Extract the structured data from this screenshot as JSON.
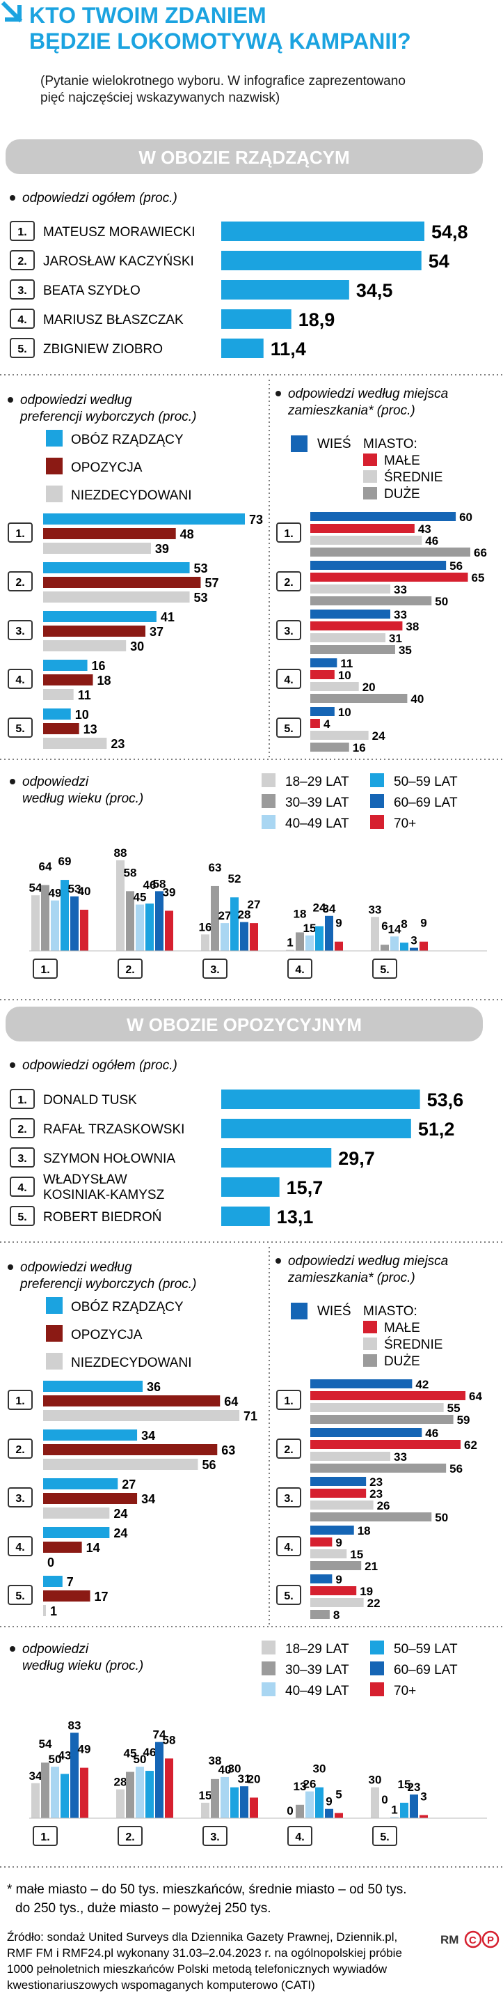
{
  "header": {
    "title_line1": "KTO TWOIM ZDANIEM",
    "title_line2": "BĘDZIE LOKOMOTYWĄ KAMPANII?",
    "subtitle_line1": "(Pytanie wielokrotnego wyboru. W infografice zaprezentowano",
    "subtitle_line2": "pięć najczęściej wskazywanych nazwisk)"
  },
  "colors": {
    "cyan": "#1ba3e0",
    "blue": "#1565b5",
    "lightblue": "#a9d6f2",
    "darkred": "#8b1a14",
    "red": "#d6202f",
    "lightgray": "#d0d0d0",
    "midgray": "#9b9b9b",
    "darkgray": "#7a7a7a",
    "band": "#c9c9c9"
  },
  "labels": {
    "overall": "odpowiedzi ogółem (proc.)",
    "pref_line1": "odpowiedzi według",
    "pref_line2": "preferencji wyborczych (proc.)",
    "place_line1_ruling": "odpowiedzi według miejsca",
    "place_line2_ruling": "zamieszkania* (proc.)",
    "place_line1_opp": "odpowiedzi według miejsca",
    "place_line2_opp": "zamieszkania* (proc.)",
    "age_line1": "odpowiedzi",
    "age_line2": "według wieku (proc.)",
    "pref_legend": [
      "OBÓZ RZĄDZĄCY",
      "OPOZYCJA",
      "NIEZDECYDOWANI"
    ],
    "place_village": "WIEŚ",
    "place_city": "MIASTO:",
    "place_legend": [
      "MAŁE",
      "ŚREDNIE",
      "DUŻE"
    ],
    "age_legend": [
      "18–29 LAT",
      "30–39 LAT",
      "40–49 LAT",
      "50–59 LAT",
      "60–69 LAT",
      "70+"
    ]
  },
  "footer": {
    "note_line1": "* małe miasto – do 50 tys. mieszkańców, średnie miasto – od 50 tys.",
    "note_line2": "do 250 tys., duże miasto – powyżej 250 tys.",
    "source_line1": "Źródło: sondaż United Surveys dla Dziennika Gazety Prawnej, Dziennik.pl,",
    "source_line2": "RMF FM i RMF24.pl wykonany 31.03–2.04.2023 r. na ogólnopolskiej próbie",
    "source_line3": "1000 pełnoletnich mieszkańców Polski metodą telefonicznych wywiadów",
    "source_line4": "kwestionariuszowych wspomaganych komputerowo (CATI)",
    "logo_text": "RM"
  },
  "chart_data": [
    {
      "section": "W OBOZIE RZĄDZĄCYM",
      "overall": {
        "type": "bar",
        "categories": [
          "MATEUSZ MORAWIECKI",
          "JAROSŁAW KACZYŃSKI",
          "BEATA SZYDŁO",
          "MARIUSZ BŁASZCZAK",
          "ZBIGNIEW ZIOBRO"
        ],
        "values": [
          "54,8",
          "54",
          "34,5",
          "18,9",
          "11,4"
        ],
        "numeric": [
          54.8,
          54,
          34.5,
          18.9,
          11.4
        ]
      },
      "by_preference": {
        "type": "bar",
        "categories": [
          "1.",
          "2.",
          "3.",
          "4.",
          "5."
        ],
        "series": [
          {
            "name": "OBÓZ RZĄDZĄCY",
            "values": [
              73,
              53,
              41,
              16,
              10
            ]
          },
          {
            "name": "OPOZYCJA",
            "values": [
              48,
              57,
              37,
              18,
              13
            ]
          },
          {
            "name": "NIEZDECYDOWANI",
            "values": [
              39,
              53,
              30,
              11,
              23
            ]
          }
        ]
      },
      "by_place": {
        "type": "bar",
        "categories": [
          "1.",
          "2.",
          "3.",
          "4.",
          "5."
        ],
        "series": [
          {
            "name": "WIEŚ",
            "values": [
              60,
              56,
              33,
              11,
              10
            ]
          },
          {
            "name": "MAŁE",
            "values": [
              43,
              65,
              38,
              10,
              4
            ]
          },
          {
            "name": "ŚREDNIE",
            "values": [
              46,
              33,
              31,
              20,
              24
            ]
          },
          {
            "name": "DUŻE",
            "values": [
              66,
              50,
              35,
              40,
              16
            ]
          }
        ]
      },
      "by_age": {
        "type": "bar",
        "categories": [
          "1.",
          "2.",
          "3.",
          "4.",
          "5."
        ],
        "series": [
          {
            "name": "18–29 LAT",
            "values": [
              54,
              88,
              16,
              1,
              33
            ]
          },
          {
            "name": "30–39 LAT",
            "values": [
              64,
              58,
              63,
              18,
              6
            ]
          },
          {
            "name": "40–49 LAT",
            "values": [
              49,
              45,
              27,
              15,
              14
            ]
          },
          {
            "name": "50–59 LAT",
            "values": [
              69,
              46,
              52,
              24,
              8
            ]
          },
          {
            "name": "60–69 LAT",
            "values": [
              53,
              58,
              28,
              34,
              3
            ]
          },
          {
            "name": "70+",
            "values": [
              40,
              39,
              27,
              9,
              9
            ]
          }
        ]
      }
    },
    {
      "section": "W OBOZIE OPOZYCYJNYM",
      "overall": {
        "type": "bar",
        "categories": [
          "DONALD TUSK",
          "RAFAŁ TRZASKOWSKI",
          "SZYMON HOŁOWNIA",
          "WŁADYSŁAW\nKOSINIAK-KAMYSZ",
          "ROBERT BIEDROŃ"
        ],
        "values": [
          "53,6",
          "51,2",
          "29,7",
          "15,7",
          "13,1"
        ],
        "numeric": [
          53.6,
          51.2,
          29.7,
          15.7,
          13.1
        ]
      },
      "by_preference": {
        "type": "bar",
        "categories": [
          "1.",
          "2.",
          "3.",
          "4.",
          "5."
        ],
        "series": [
          {
            "name": "OBÓZ RZĄDZĄCY",
            "values": [
              36,
              34,
              27,
              24,
              7
            ]
          },
          {
            "name": "OPOZYCJA",
            "values": [
              64,
              63,
              34,
              14,
              17
            ]
          },
          {
            "name": "NIEZDECYDOWANI",
            "values": [
              71,
              56,
              24,
              0,
              1
            ]
          }
        ]
      },
      "by_place": {
        "type": "bar",
        "categories": [
          "1.",
          "2.",
          "3.",
          "4.",
          "5."
        ],
        "series": [
          {
            "name": "WIEŚ",
            "values": [
              42,
              46,
              23,
              18,
              9
            ]
          },
          {
            "name": "MAŁE",
            "values": [
              64,
              62,
              23,
              9,
              19
            ]
          },
          {
            "name": "ŚREDNIE",
            "values": [
              55,
              33,
              26,
              15,
              22
            ]
          },
          {
            "name": "DUŻE",
            "values": [
              59,
              56,
              50,
              21,
              8
            ]
          }
        ]
      },
      "by_age": {
        "type": "bar",
        "categories": [
          "1.",
          "2.",
          "3.",
          "4.",
          "5."
        ],
        "series": [
          {
            "name": "18–29 LAT",
            "values": [
              34,
              28,
              15,
              0,
              30
            ]
          },
          {
            "name": "30–39 LAT",
            "values": [
              54,
              45,
              38,
              13,
              0
            ]
          },
          {
            "name": "40–49 LAT",
            "values": [
              50,
              50,
              40,
              26,
              1
            ]
          },
          {
            "name": "50–59 LAT",
            "values": [
              43,
              46,
              30,
              30,
              15
            ]
          },
          {
            "name": "60–69 LAT",
            "values": [
              83,
              74,
              31,
              9,
              23
            ]
          },
          {
            "name": "70+",
            "values": [
              49,
              58,
              20,
              5,
              3
            ]
          }
        ]
      }
    }
  ]
}
